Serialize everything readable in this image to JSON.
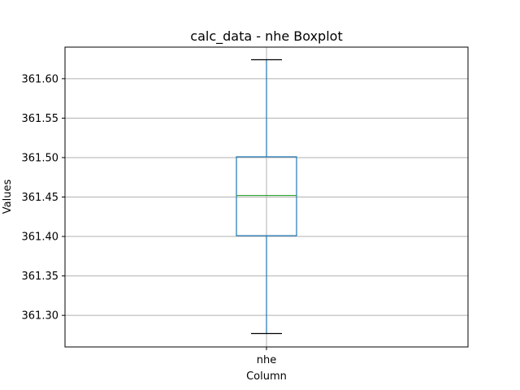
{
  "chart_data": {
    "type": "boxplot",
    "title": "calc_data - nhe Boxplot",
    "xlabel": "Column",
    "ylabel": "Values",
    "categories": [
      "nhe"
    ],
    "boxes": [
      {
        "category": "nhe",
        "whisker_low": 361.277,
        "q1": 361.401,
        "median": 361.452,
        "q3": 361.501,
        "whisker_high": 361.624
      }
    ],
    "ylim": [
      361.26,
      361.64
    ],
    "yticks": [
      361.3,
      361.35,
      361.4,
      361.45,
      361.5,
      361.55,
      361.6
    ],
    "ytick_labels": [
      "361.30",
      "361.35",
      "361.40",
      "361.45",
      "361.50",
      "361.55",
      "361.60"
    ],
    "grid": true,
    "colors": {
      "box": "#1f77b4",
      "whisker": "#1f77b4",
      "cap": "#000000",
      "median": "#2ca02c",
      "grid": "#b0b0b0",
      "axes": "#000000"
    }
  }
}
